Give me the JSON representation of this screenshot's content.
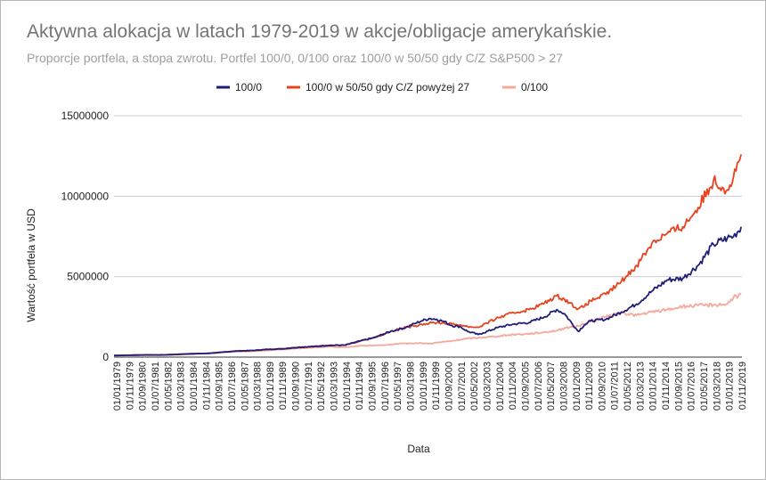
{
  "chart_data": {
    "type": "line",
    "title": "Aktywna alokacja w latach 1979-2019 w akcje/obligacje amerykańskie.",
    "subtitle": "Proporcje portfela, a stopa zwrotu. Portfel 100/0, 0/100 oraz 100/0 w 50/50 gdy C/Z S&P500 > 27",
    "xlabel": "Data",
    "ylabel": "Wartość portfela w USD",
    "ylim": [
      0,
      15000000
    ],
    "yticks": [
      "0",
      "5000000",
      "10000000",
      "15000000"
    ],
    "grid": true,
    "legend_position": "top",
    "x_tick_labels": [
      "01/01/1979",
      "01/11/1979",
      "01/09/1980",
      "01/07/1981",
      "01/05/1982",
      "01/03/1983",
      "01/01/1984",
      "01/11/1984",
      "01/09/1985",
      "01/07/1986",
      "01/05/1987",
      "01/03/1988",
      "01/01/1989",
      "01/11/1989",
      "01/09/1990",
      "01/07/1991",
      "01/05/1992",
      "01/03/1993",
      "01/01/1994",
      "01/11/1994",
      "01/09/1995",
      "01/07/1996",
      "01/05/1997",
      "01/03/1998",
      "01/01/1999",
      "01/11/1999",
      "01/09/2000",
      "01/07/2001",
      "01/05/2002",
      "01/03/2003",
      "01/01/2004",
      "01/11/2004",
      "01/09/2005",
      "01/07/2006",
      "01/05/2007",
      "01/03/2008",
      "01/01/2009",
      "01/11/2009",
      "01/09/2010",
      "01/07/2011",
      "01/05/2012",
      "01/03/2013",
      "01/01/2014",
      "01/11/2014",
      "01/09/2015",
      "01/07/2016",
      "01/05/2017",
      "01/03/2018",
      "01/01/2019",
      "01/11/2019"
    ],
    "x": [
      1979,
      1980,
      1981,
      1982,
      1983,
      1984,
      1985,
      1986,
      1987,
      1988,
      1989,
      1990,
      1991,
      1992,
      1993,
      1994,
      1995,
      1996,
      1997,
      1998,
      1998.6,
      1999,
      1999.5,
      2000,
      2000.5,
      2001,
      2001.5,
      2002,
      2002.7,
      2003,
      2004,
      2005,
      2006,
      2007,
      2007.8,
      2008.3,
      2009.2,
      2009.6,
      2010,
      2011,
      2012,
      2013,
      2014,
      2015,
      2016,
      2017,
      2018,
      2018.9,
      2019.3,
      2019.8
    ],
    "series": [
      {
        "name": "100/0",
        "color": "#1f1f7a",
        "values": [
          100000,
          118000,
          140000,
          135000,
          165000,
          210000,
          225000,
          300000,
          380000,
          410000,
          480000,
          520000,
          610000,
          660000,
          730000,
          740000,
          1000000,
          1230000,
          1600000,
          1850000,
          2100000,
          2250000,
          2400000,
          2350000,
          2200000,
          1950000,
          1900000,
          1600000,
          1400000,
          1500000,
          1850000,
          2050000,
          2150000,
          2500000,
          2950000,
          2700000,
          1600000,
          2000000,
          2250000,
          2350000,
          2800000,
          3300000,
          4100000,
          4800000,
          4900000,
          5700000,
          7000000,
          7400000,
          7500000,
          8100000
        ]
      },
      {
        "name": "100/0 w 50/50 gdy C/Z powyżej 27",
        "color": "#e8431f",
        "values": [
          100000,
          118000,
          140000,
          135000,
          165000,
          210000,
          225000,
          300000,
          380000,
          410000,
          480000,
          520000,
          610000,
          660000,
          730000,
          740000,
          1000000,
          1230000,
          1600000,
          1850000,
          1950000,
          2050000,
          2100000,
          2150000,
          2100000,
          2050000,
          2000000,
          1900000,
          1850000,
          2000000,
          2450000,
          2750000,
          2950000,
          3350000,
          3800000,
          3600000,
          3000000,
          3150000,
          3500000,
          3900000,
          4700000,
          5700000,
          7100000,
          7700000,
          8100000,
          9300000,
          11000000,
          10400000,
          11200000,
          12600000
        ]
      },
      {
        "name": "0/100",
        "color": "#f4a99b",
        "values": [
          100000,
          105000,
          110000,
          120000,
          150000,
          180000,
          230000,
          300000,
          340000,
          360000,
          420000,
          480000,
          540000,
          590000,
          640000,
          610000,
          700000,
          730000,
          780000,
          850000,
          870000,
          860000,
          840000,
          900000,
          950000,
          1000000,
          1080000,
          1150000,
          1200000,
          1230000,
          1300000,
          1400000,
          1450000,
          1550000,
          1650000,
          1800000,
          1950000,
          2050000,
          2200000,
          2500000,
          2750000,
          2600000,
          2800000,
          2950000,
          3150000,
          3200000,
          3250000,
          3300000,
          3700000,
          3900000
        ]
      }
    ]
  }
}
